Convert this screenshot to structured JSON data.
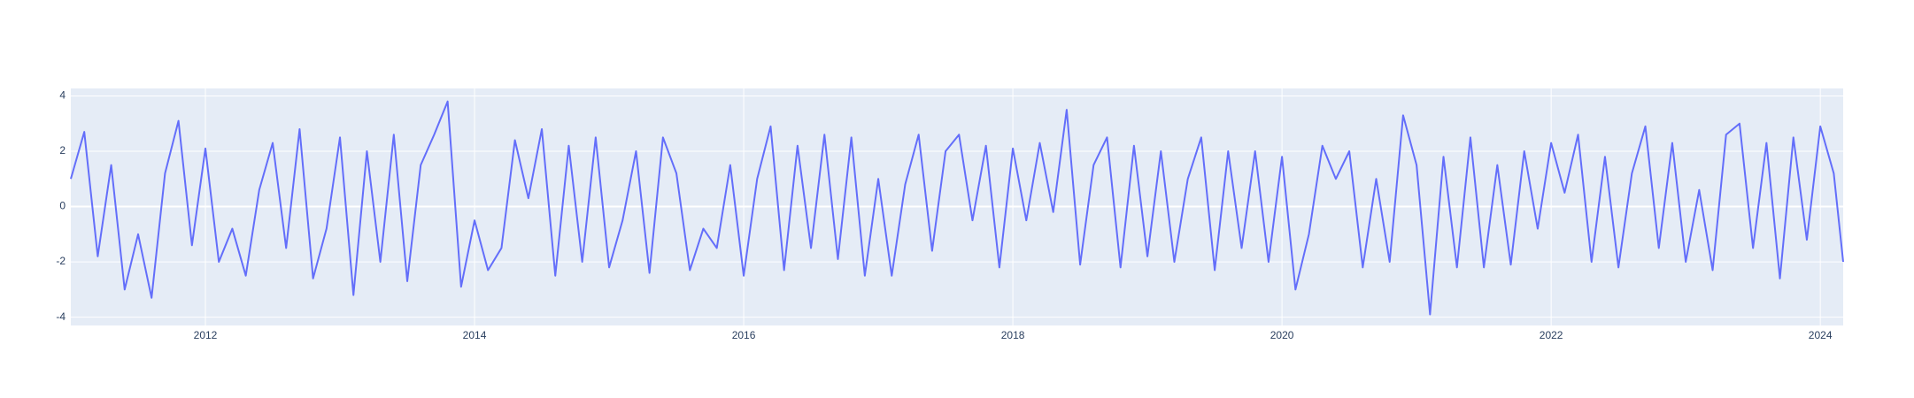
{
  "chart_data": {
    "type": "line",
    "color": "#636efa",
    "grid": true,
    "x": [
      2011.0,
      2011.1,
      2011.2,
      2011.3,
      2011.4,
      2011.5,
      2011.6,
      2011.7,
      2011.8,
      2011.9,
      2012.0,
      2012.1,
      2012.2,
      2012.3,
      2012.4,
      2012.5,
      2012.6,
      2012.7,
      2012.8,
      2012.9,
      2013.0,
      2013.1,
      2013.2,
      2013.3,
      2013.4,
      2013.5,
      2013.6,
      2013.7,
      2013.8,
      2013.9,
      2014.0,
      2014.1,
      2014.2,
      2014.3,
      2014.4,
      2014.5,
      2014.6,
      2014.7,
      2014.8,
      2014.9,
      2015.0,
      2015.1,
      2015.2,
      2015.3,
      2015.4,
      2015.5,
      2015.6,
      2015.7,
      2015.8,
      2015.9,
      2016.0,
      2016.1,
      2016.2,
      2016.3,
      2016.4,
      2016.5,
      2016.6,
      2016.7,
      2016.8,
      2016.9,
      2017.0,
      2017.1,
      2017.2,
      2017.3,
      2017.4,
      2017.5,
      2017.6,
      2017.7,
      2017.8,
      2017.9,
      2018.0,
      2018.1,
      2018.2,
      2018.3,
      2018.4,
      2018.5,
      2018.6,
      2018.7,
      2018.8,
      2018.9,
      2019.0,
      2019.1,
      2019.2,
      2019.3,
      2019.4,
      2019.5,
      2019.6,
      2019.7,
      2019.8,
      2019.9,
      2020.0,
      2020.1,
      2020.2,
      2020.3,
      2020.4,
      2020.5,
      2020.6,
      2020.7,
      2020.8,
      2020.9,
      2021.0,
      2021.1,
      2021.2,
      2021.3,
      2021.4,
      2021.5,
      2021.6,
      2021.7,
      2021.8,
      2021.9,
      2022.0,
      2022.1,
      2022.2,
      2022.3,
      2022.4,
      2022.5,
      2022.6,
      2022.7,
      2022.8,
      2022.9,
      2023.0,
      2023.1,
      2023.2,
      2023.3,
      2023.4,
      2023.5,
      2023.6,
      2023.7,
      2023.8,
      2023.9,
      2024.0,
      2024.1,
      2024.17
    ],
    "values": [
      1.0,
      2.7,
      -1.8,
      1.5,
      -3.0,
      -1.0,
      -3.3,
      1.2,
      3.1,
      -1.4,
      2.1,
      -2.0,
      -0.8,
      -2.5,
      0.6,
      2.3,
      -1.5,
      2.8,
      -2.6,
      -0.8,
      2.5,
      -3.2,
      2.0,
      -2.0,
      2.6,
      -2.7,
      1.5,
      2.6,
      3.8,
      -2.9,
      -0.5,
      -2.3,
      -1.5,
      2.4,
      0.3,
      2.8,
      -2.5,
      2.2,
      -2.0,
      2.5,
      -2.2,
      -0.5,
      2.0,
      -2.4,
      2.5,
      1.2,
      -2.3,
      -0.8,
      -1.5,
      1.5,
      -2.5,
      1.0,
      2.9,
      -2.3,
      2.2,
      -1.5,
      2.6,
      -1.9,
      2.5,
      -2.5,
      1.0,
      -2.5,
      0.8,
      2.6,
      -1.6,
      2.0,
      2.6,
      -0.5,
      2.2,
      -2.2,
      2.1,
      -0.5,
      2.3,
      -0.2,
      3.5,
      -2.1,
      1.5,
      2.5,
      -2.2,
      2.2,
      -1.8,
      2.0,
      -2.0,
      1.0,
      2.5,
      -2.3,
      2.0,
      -1.5,
      2.0,
      -2.0,
      1.8,
      -3.0,
      -1.0,
      2.2,
      1.0,
      2.0,
      -2.2,
      1.0,
      -2.0,
      3.3,
      1.5,
      -3.9,
      1.8,
      -2.2,
      2.5,
      -2.2,
      1.5,
      -2.1,
      2.0,
      -0.8,
      2.3,
      0.5,
      2.6,
      -2.0,
      1.8,
      -2.2,
      1.2,
      2.9,
      -1.5,
      2.3,
      -2.0,
      0.6,
      -2.3,
      2.6,
      3.0,
      -1.5,
      2.3,
      -2.6,
      2.5,
      -1.2,
      2.9,
      1.2,
      -2.0
    ],
    "xlim": [
      2011.0,
      2024.17
    ],
    "xticks": [
      2012,
      2014,
      2016,
      2018,
      2020,
      2022,
      2024
    ],
    "ylim": [
      -4.3,
      4.27
    ],
    "yticks": [
      -4,
      -2,
      0,
      2,
      4
    ]
  }
}
